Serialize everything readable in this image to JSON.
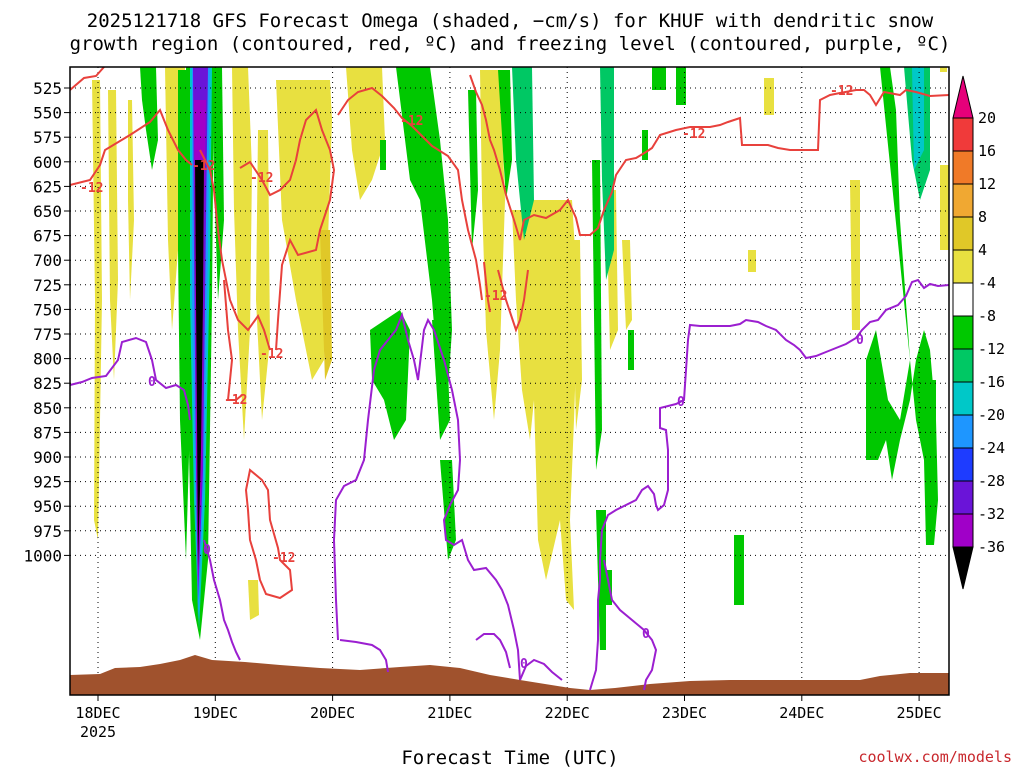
{
  "chart_data": {
    "type": "time-height cross section",
    "title_line1": "2025121718 GFS Forecast Omega (shaded, −cm/s) for KHUF with dendritic snow",
    "title_line2": "growth region (contoured, red, ºC) and freezing level (contoured, purple, ºC)",
    "xlabel": "Forecast Time (UTC)",
    "x_ticks": [
      "18DEC",
      "19DEC",
      "20DEC",
      "21DEC",
      "22DEC",
      "23DEC",
      "24DEC",
      "25DEC"
    ],
    "x_year_label": "2025",
    "y_ticks": [
      525,
      550,
      575,
      600,
      625,
      650,
      675,
      700,
      725,
      750,
      775,
      800,
      825,
      850,
      875,
      900,
      925,
      950,
      975,
      1000
    ],
    "colorbar_ticks": [
      20,
      16,
      12,
      8,
      4,
      -4,
      -8,
      -12,
      -16,
      -20,
      -24,
      -28,
      -32,
      -36
    ],
    "colorbar_colors": [
      "#e6007a",
      "#f03a3a",
      "#f07a28",
      "#f0a832",
      "#e0c828",
      "#e8e040",
      "#ffffff",
      "#00c800",
      "#00c864",
      "#00c8c8",
      "#1e96ff",
      "#1e3cff",
      "#6a14d8",
      "#a000c8",
      "#a0a0a0",
      "#000000"
    ],
    "omega_units": "-cm/s",
    "dgz_contour_label": "-12",
    "freezing_contour_label": "0",
    "dgz_color": "#e8413c",
    "freezing_color": "#9b1fd0",
    "terrain_color": "#a0522d"
  },
  "credit": "coolwx.com/models"
}
